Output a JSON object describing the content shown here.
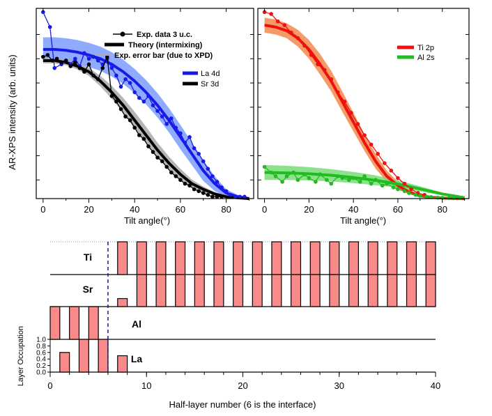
{
  "chart_data": [
    {
      "type": "line",
      "panel": "left",
      "xlabel": "Tilt angle(°)",
      "ylabel": "AR-XPS intensity (arb. units)",
      "xlim": [
        -3,
        92
      ],
      "ylim": [
        0,
        1.02
      ],
      "xticks": [
        0,
        20,
        40,
        60,
        80
      ],
      "legend_top": {
        "placement": "top-right",
        "entries": [
          "Exp. data 3 u.c.",
          "Theory (intermixing)",
          "Exp. error bar (due to XPD)"
        ]
      },
      "legend_series": {
        "placement": "right",
        "entries": [
          "La 4d",
          "Sr 3d"
        ]
      },
      "series": [
        {
          "name": "La 4d",
          "role": "theory",
          "color": "#1a1ae6",
          "band_color": "#7a9cff",
          "x": [
            0,
            5,
            10,
            15,
            20,
            25,
            30,
            35,
            40,
            45,
            50,
            55,
            60,
            65,
            70,
            75,
            80,
            85,
            90
          ],
          "y": [
            0.8,
            0.8,
            0.795,
            0.785,
            0.77,
            0.75,
            0.72,
            0.68,
            0.63,
            0.57,
            0.5,
            0.42,
            0.33,
            0.24,
            0.15,
            0.08,
            0.03,
            0.01,
            0.0
          ],
          "band": [
            0.065,
            0.065,
            0.065,
            0.065,
            0.065,
            0.065,
            0.065,
            0.065,
            0.065,
            0.065,
            0.065,
            0.065,
            0.065,
            0.06,
            0.055,
            0.04,
            0.02,
            0.01,
            0.005
          ]
        },
        {
          "name": "La 4d",
          "role": "experiment",
          "color": "#1a1ae6",
          "x": [
            0,
            3,
            5,
            8,
            10,
            12,
            14,
            16,
            18,
            20,
            22,
            24,
            26,
            28,
            30,
            32,
            34,
            36,
            38,
            40,
            42,
            44,
            46,
            48,
            50,
            52,
            54,
            56,
            58,
            60,
            62,
            64,
            66,
            68,
            70,
            72,
            74,
            76,
            78,
            80,
            82,
            84,
            86,
            88
          ],
          "y": [
            1.0,
            0.92,
            0.7,
            0.72,
            0.74,
            0.72,
            0.75,
            0.71,
            0.78,
            0.75,
            0.76,
            0.74,
            0.72,
            0.75,
            0.7,
            0.66,
            0.6,
            0.64,
            0.62,
            0.57,
            0.54,
            0.52,
            0.55,
            0.5,
            0.47,
            0.44,
            0.4,
            0.43,
            0.38,
            0.35,
            0.3,
            0.33,
            0.27,
            0.24,
            0.2,
            0.16,
            0.12,
            0.09,
            0.06,
            0.04,
            0.02,
            0.01,
            0.01,
            0.01
          ]
        },
        {
          "name": "Sr 3d",
          "role": "theory",
          "color": "#000000",
          "band_color": "#a9a9a9",
          "x": [
            0,
            5,
            10,
            15,
            20,
            25,
            30,
            35,
            40,
            45,
            50,
            55,
            60,
            65,
            70,
            75,
            80,
            85,
            90
          ],
          "y": [
            0.74,
            0.74,
            0.73,
            0.71,
            0.68,
            0.63,
            0.57,
            0.5,
            0.42,
            0.34,
            0.26,
            0.19,
            0.13,
            0.08,
            0.05,
            0.025,
            0.01,
            0.004,
            0.0
          ],
          "band": [
            0.015,
            0.015,
            0.015,
            0.018,
            0.022,
            0.028,
            0.035,
            0.04,
            0.045,
            0.045,
            0.04,
            0.035,
            0.03,
            0.022,
            0.015,
            0.01,
            0.005,
            0.002,
            0.0
          ]
        },
        {
          "name": "Sr 3d",
          "role": "experiment",
          "color": "#000000",
          "x": [
            0,
            2,
            4,
            6,
            8,
            10,
            12,
            14,
            16,
            18,
            20,
            22,
            24,
            26,
            28,
            30,
            32,
            34,
            36,
            38,
            40,
            42,
            44,
            46,
            48,
            50,
            52,
            54,
            56,
            58,
            60,
            62,
            64,
            66,
            68,
            70,
            72,
            74,
            76,
            78
          ],
          "y": [
            0.76,
            0.77,
            0.74,
            0.75,
            0.73,
            0.74,
            0.71,
            0.73,
            0.7,
            0.68,
            0.72,
            0.66,
            0.64,
            0.7,
            0.76,
            0.55,
            0.52,
            0.48,
            0.44,
            0.42,
            0.38,
            0.34,
            0.32,
            0.28,
            0.25,
            0.22,
            0.2,
            0.17,
            0.14,
            0.12,
            0.1,
            0.08,
            0.07,
            0.05,
            0.04,
            0.03,
            0.02,
            0.01,
            0.01,
            0.01
          ]
        }
      ]
    },
    {
      "type": "line",
      "panel": "right",
      "xlabel": "Tilt angle(°)",
      "xlim": [
        -3,
        92
      ],
      "ylim": [
        0,
        1.02
      ],
      "xticks": [
        0,
        20,
        40,
        60,
        80
      ],
      "legend": {
        "placement": "top-right",
        "entries": [
          "Ti 2p",
          "Al 2s"
        ]
      },
      "series": [
        {
          "name": "Ti 2p",
          "role": "theory",
          "color": "#ee1111",
          "band_color": "#f58a4a",
          "x": [
            0,
            5,
            10,
            15,
            20,
            25,
            30,
            35,
            40,
            45,
            50,
            55,
            60,
            65,
            70,
            75,
            80,
            85,
            90
          ],
          "y": [
            0.93,
            0.92,
            0.9,
            0.86,
            0.8,
            0.72,
            0.63,
            0.52,
            0.41,
            0.3,
            0.2,
            0.12,
            0.07,
            0.035,
            0.015,
            0.007,
            0.003,
            0.001,
            0.0
          ],
          "band": [
            0.04,
            0.04,
            0.04,
            0.045,
            0.05,
            0.055,
            0.055,
            0.055,
            0.05,
            0.045,
            0.04,
            0.03,
            0.02,
            0.012,
            0.006,
            0.003,
            0.001,
            0.0,
            0.0
          ]
        },
        {
          "name": "Ti 2p",
          "role": "experiment",
          "color": "#ee1111",
          "x": [
            0,
            3,
            6,
            9,
            12,
            15,
            18,
            21,
            24,
            27,
            30,
            33,
            36,
            39,
            42,
            45,
            48,
            51,
            54,
            57,
            60,
            63,
            66,
            69,
            72
          ],
          "y": [
            1.0,
            0.99,
            0.95,
            0.93,
            0.89,
            0.86,
            0.82,
            0.77,
            0.72,
            0.69,
            0.64,
            0.57,
            0.52,
            0.46,
            0.4,
            0.34,
            0.29,
            0.24,
            0.19,
            0.15,
            0.11,
            0.08,
            0.05,
            0.03,
            0.02
          ]
        },
        {
          "name": "Al 2s",
          "role": "theory",
          "color": "#22bb22",
          "band_color": "#77dd77",
          "x": [
            0,
            10,
            20,
            30,
            40,
            50,
            60,
            70,
            80,
            90
          ],
          "y": [
            0.14,
            0.138,
            0.133,
            0.125,
            0.113,
            0.098,
            0.078,
            0.052,
            0.025,
            0.005
          ],
          "band": [
            0.04,
            0.038,
            0.036,
            0.033,
            0.03,
            0.026,
            0.02,
            0.014,
            0.007,
            0.002
          ]
        },
        {
          "name": "Al 2s",
          "role": "experiment",
          "color": "#22bb22",
          "x": [
            0,
            3,
            5,
            8,
            10,
            13,
            15,
            18,
            20,
            23,
            25,
            28,
            30,
            33,
            35,
            38,
            40,
            43,
            45,
            48,
            50,
            53,
            55,
            58,
            60,
            63,
            65,
            68,
            70,
            73,
            75,
            78,
            80,
            83,
            85,
            88
          ],
          "y": [
            0.17,
            0.14,
            0.12,
            0.09,
            0.12,
            0.14,
            0.1,
            0.13,
            0.11,
            0.09,
            0.13,
            0.1,
            0.08,
            0.12,
            0.11,
            0.1,
            0.11,
            0.09,
            0.12,
            0.08,
            0.1,
            0.07,
            0.08,
            0.06,
            0.05,
            0.04,
            0.03,
            0.02,
            0.015,
            0.01,
            0.008,
            0.005,
            0.004,
            0.003,
            0.002,
            0.002
          ]
        }
      ]
    },
    {
      "type": "bar",
      "panel": "bottom",
      "xlabel": "Half-layer number (6 is the interface)",
      "ylabel": "Layer Occupation",
      "xlim": [
        0,
        40
      ],
      "xticks": [
        0,
        10,
        20,
        30,
        40
      ],
      "yticks": [
        "0.0",
        "0.2",
        "0.4",
        "0.6",
        "0.8",
        "1.0"
      ],
      "interface_x": 6,
      "bar_color": "#f98a8a",
      "tracks": [
        {
          "name": "Ti",
          "x": [
            7,
            9,
            11,
            13,
            15,
            17,
            19,
            21,
            23,
            25,
            27,
            29,
            31,
            33,
            35,
            37,
            39
          ],
          "values": [
            1,
            1,
            1,
            1,
            1,
            1,
            1,
            1,
            1,
            1,
            1,
            1,
            1,
            1,
            1,
            1,
            1
          ]
        },
        {
          "name": "Sr",
          "x": [
            7,
            9,
            11,
            13,
            15,
            17,
            19,
            21,
            23,
            25,
            27,
            29,
            31,
            33,
            35,
            37,
            39
          ],
          "values": [
            0.25,
            1,
            1,
            1,
            1,
            1,
            1,
            1,
            1,
            1,
            1,
            1,
            1,
            1,
            1,
            1,
            1
          ]
        },
        {
          "name": "Al",
          "x": [
            0,
            2,
            4
          ],
          "values": [
            1,
            1,
            1
          ]
        },
        {
          "name": "La",
          "x": [
            1,
            3,
            5,
            7
          ],
          "values": [
            0.6,
            1,
            1,
            0.5
          ]
        }
      ]
    }
  ]
}
